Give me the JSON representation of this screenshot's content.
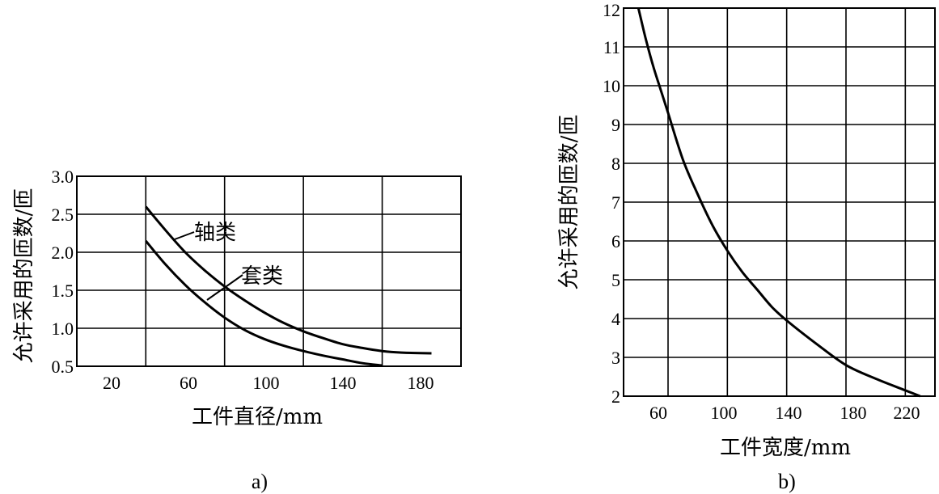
{
  "chart_data": [
    {
      "type": "line",
      "caption": "a)",
      "xlabel": "工件直径/mm",
      "ylabel": "允许采用的匝数/匝",
      "xlim": [
        5,
        200
      ],
      "ylim": [
        0.5,
        3.0
      ],
      "xticks": [
        "20",
        "60",
        "100",
        "140",
        "180"
      ],
      "xtick_values": [
        20,
        60,
        100,
        140,
        180
      ],
      "yticks": [
        "0.5",
        "1.0",
        "1.5",
        "2.0",
        "2.5",
        "3.0"
      ],
      "ytick_values": [
        0.5,
        1.0,
        1.5,
        2.0,
        2.5,
        3.0
      ],
      "xgrid": [
        40,
        80,
        120,
        160
      ],
      "grid": true,
      "series": [
        {
          "name": "轴类",
          "points": [
            [
              40,
              2.6
            ],
            [
              50,
              2.29
            ],
            [
              60,
              2.0
            ],
            [
              70,
              1.76
            ],
            [
              80,
              1.55
            ],
            [
              90,
              1.37
            ],
            [
              100,
              1.21
            ],
            [
              110,
              1.07
            ],
            [
              120,
              0.96
            ],
            [
              130,
              0.87
            ],
            [
              140,
              0.79
            ],
            [
              150,
              0.74
            ],
            [
              160,
              0.7
            ],
            [
              170,
              0.68
            ],
            [
              185,
              0.67
            ]
          ]
        },
        {
          "name": "套类",
          "points": [
            [
              40,
              2.15
            ],
            [
              50,
              1.84
            ],
            [
              60,
              1.57
            ],
            [
              70,
              1.34
            ],
            [
              80,
              1.14
            ],
            [
              90,
              0.98
            ],
            [
              100,
              0.86
            ],
            [
              110,
              0.77
            ],
            [
              120,
              0.7
            ],
            [
              130,
              0.64
            ],
            [
              140,
              0.59
            ],
            [
              150,
              0.54
            ],
            [
              160,
              0.51
            ]
          ]
        }
      ]
    },
    {
      "type": "line",
      "caption": "b)",
      "xlabel": "工件宽度/mm",
      "ylabel": "允许采用的匝数/匝",
      "xlim": [
        30,
        240
      ],
      "ylim": [
        2,
        12
      ],
      "xticks": [
        "60",
        "100",
        "140",
        "180",
        "220"
      ],
      "xtick_values": [
        60,
        100,
        140,
        180,
        220
      ],
      "yticks": [
        "2",
        "3",
        "4",
        "5",
        "6",
        "7",
        "8",
        "9",
        "10",
        "11",
        "12"
      ],
      "ytick_values": [
        2,
        3,
        4,
        5,
        6,
        7,
        8,
        9,
        10,
        11,
        12
      ],
      "xgrid": [
        60,
        100,
        140,
        180,
        220
      ],
      "grid": true,
      "series": [
        {
          "points": [
            [
              40,
              12.0
            ],
            [
              45,
              11.2
            ],
            [
              50,
              10.5
            ],
            [
              55,
              9.9
            ],
            [
              60,
              9.3
            ],
            [
              70,
              8.1
            ],
            [
              80,
              7.2
            ],
            [
              90,
              6.4
            ],
            [
              100,
              5.75
            ],
            [
              110,
              5.2
            ],
            [
              120,
              4.75
            ],
            [
              130,
              4.3
            ],
            [
              140,
              3.95
            ],
            [
              160,
              3.35
            ],
            [
              180,
              2.8
            ],
            [
              200,
              2.45
            ],
            [
              220,
              2.15
            ],
            [
              230,
              2.0
            ]
          ]
        }
      ]
    }
  ]
}
